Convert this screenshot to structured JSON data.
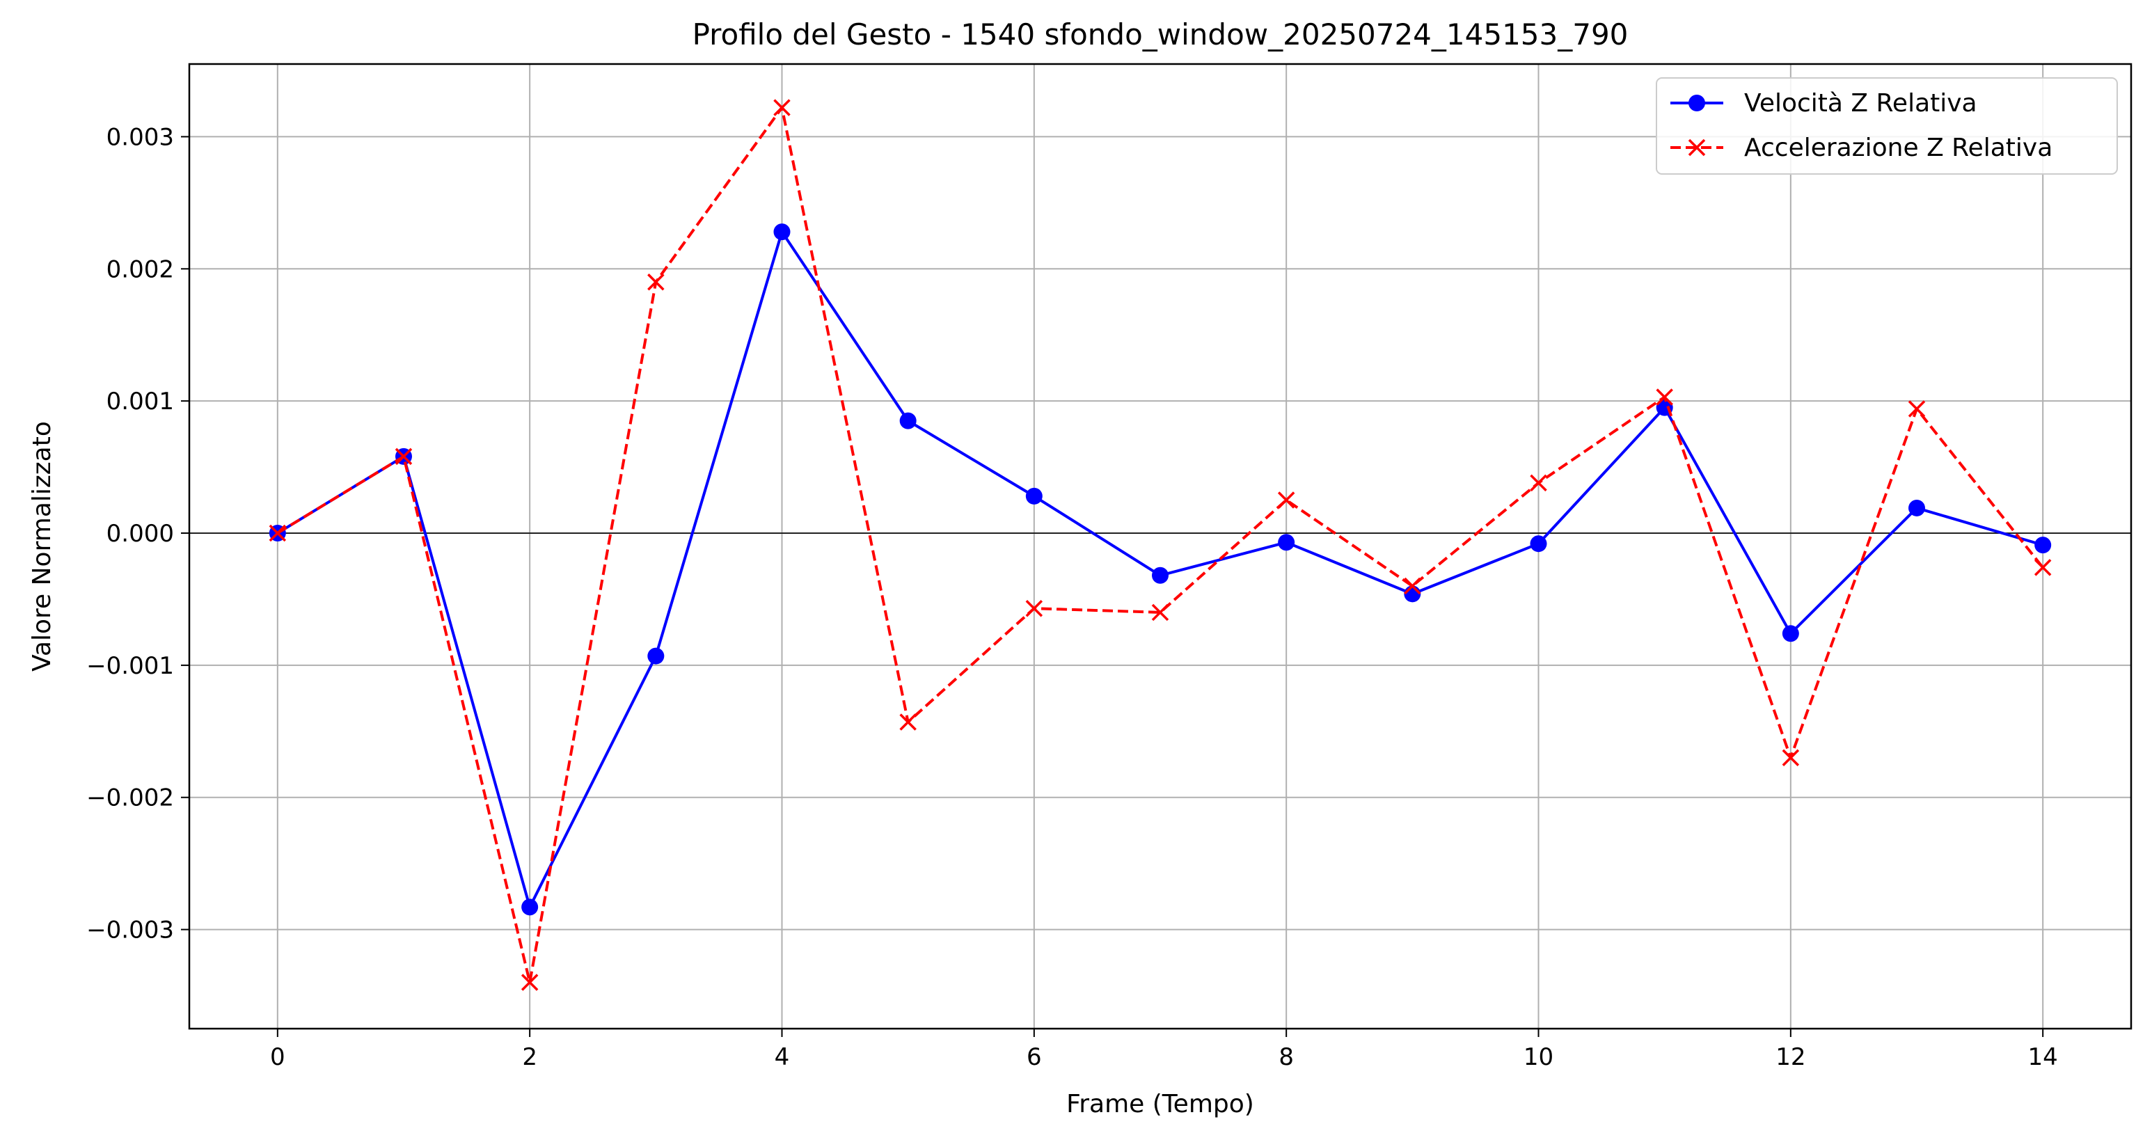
{
  "chart_data": {
    "type": "line",
    "title": "Profilo del Gesto - 1540 sfondo_window_20250724_145153_790",
    "xlabel": "Frame (Tempo)",
    "ylabel": "Valore Normalizzato",
    "xlim": [
      -0.7,
      14.7
    ],
    "ylim": [
      -0.00375,
      0.00355
    ],
    "x_ticks": [
      0,
      2,
      4,
      6,
      8,
      10,
      12,
      14
    ],
    "x_tick_labels": [
      "0",
      "2",
      "4",
      "6",
      "8",
      "10",
      "12",
      "14"
    ],
    "y_ticks": [
      -0.003,
      -0.002,
      -0.001,
      0.0,
      0.001,
      0.002,
      0.003
    ],
    "y_tick_labels": [
      "−0.003",
      "−0.002",
      "−0.001",
      "0.000",
      "0.001",
      "0.002",
      "0.003"
    ],
    "grid": true,
    "zero_line": true,
    "legend_position": "top-right",
    "x": [
      0,
      1,
      2,
      3,
      4,
      5,
      6,
      7,
      8,
      9,
      10,
      11,
      12,
      13,
      14
    ],
    "series": [
      {
        "name": "Velocità Z Relativa",
        "color": "#0000ff",
        "line_style": "solid",
        "marker": "circle",
        "values": [
          0.0,
          0.00058,
          -0.00283,
          -0.00093,
          0.00228,
          0.00085,
          0.00028,
          -0.00032,
          -7e-05,
          -0.00046,
          -8e-05,
          0.00095,
          -0.00076,
          0.00019,
          -9e-05
        ]
      },
      {
        "name": "Accelerazione Z Relativa",
        "color": "#ff0000",
        "line_style": "dashed",
        "marker": "x",
        "values": [
          0.0,
          0.00058,
          -0.0034,
          0.0019,
          0.00322,
          -0.00143,
          -0.00057,
          -0.0006,
          0.00025,
          -0.0004,
          0.00038,
          0.00103,
          -0.0017,
          0.00094,
          -0.00026
        ]
      }
    ]
  }
}
